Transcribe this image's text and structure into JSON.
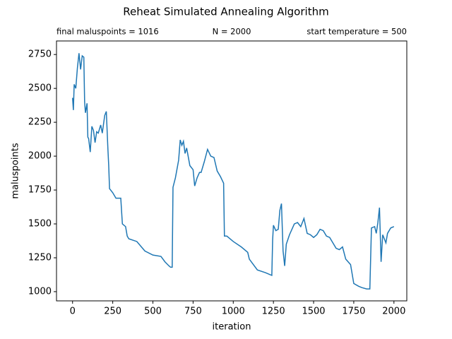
{
  "chart_data": {
    "type": "line",
    "title": "Reheat Simulated Annealing Algorithm",
    "subtitles": [
      "final maluspoints = 1016",
      "N = 2000",
      "start temperature = 500"
    ],
    "xlabel": "iteration",
    "ylabel": "maluspoints",
    "xlim": [
      -100,
      2080
    ],
    "ylim": [
      932,
      2850
    ],
    "xticks": [
      0,
      250,
      500,
      750,
      1000,
      1250,
      1500,
      1750,
      2000
    ],
    "yticks": [
      1000,
      1250,
      1500,
      1750,
      2000,
      2250,
      2500,
      2750
    ],
    "series": [
      {
        "color": "#1f77b4",
        "x": [
          0,
          5,
          10,
          20,
          30,
          40,
          50,
          60,
          70,
          75,
          80,
          90,
          95,
          100,
          110,
          120,
          130,
          140,
          150,
          160,
          175,
          185,
          200,
          210,
          220,
          225,
          230,
          250,
          270,
          300,
          310,
          330,
          340,
          350,
          400,
          450,
          500,
          550,
          575,
          600,
          610,
          620,
          625,
          640,
          660,
          670,
          680,
          690,
          700,
          710,
          730,
          750,
          760,
          775,
          790,
          800,
          820,
          840,
          860,
          880,
          900,
          920,
          940,
          945,
          960,
          1000,
          1050,
          1090,
          1100,
          1150,
          1200,
          1240,
          1245,
          1250,
          1265,
          1280,
          1290,
          1300,
          1310,
          1320,
          1330,
          1350,
          1380,
          1400,
          1420,
          1440,
          1460,
          1480,
          1500,
          1520,
          1540,
          1560,
          1580,
          1600,
          1620,
          1640,
          1660,
          1680,
          1700,
          1730,
          1750,
          1780,
          1800,
          1830,
          1850,
          1860,
          1880,
          1890,
          1900,
          1910,
          1920,
          1930,
          1950,
          1960,
          1980,
          2000
        ],
        "values": [
          2430,
          2340,
          2530,
          2500,
          2650,
          2760,
          2640,
          2740,
          2730,
          2400,
          2320,
          2390,
          2140,
          2130,
          2030,
          2220,
          2190,
          2100,
          2180,
          2170,
          2230,
          2170,
          2300,
          2330,
          2050,
          1930,
          1760,
          1730,
          1690,
          1690,
          1500,
          1480,
          1410,
          1390,
          1370,
          1300,
          1270,
          1260,
          1220,
          1190,
          1180,
          1180,
          1770,
          1840,
          1970,
          2120,
          2080,
          2110,
          2020,
          2060,
          1930,
          1900,
          1780,
          1840,
          1880,
          1880,
          1960,
          2050,
          2000,
          1990,
          1890,
          1850,
          1800,
          1410,
          1410,
          1370,
          1330,
          1290,
          1240,
          1160,
          1140,
          1120,
          1380,
          1490,
          1450,
          1460,
          1600,
          1650,
          1300,
          1190,
          1350,
          1420,
          1500,
          1510,
          1480,
          1540,
          1430,
          1420,
          1400,
          1420,
          1460,
          1450,
          1410,
          1400,
          1360,
          1320,
          1310,
          1330,
          1240,
          1200,
          1060,
          1040,
          1030,
          1020,
          1020,
          1470,
          1480,
          1430,
          1510,
          1620,
          1220,
          1420,
          1360,
          1430,
          1470,
          1480
        ]
      }
    ]
  }
}
